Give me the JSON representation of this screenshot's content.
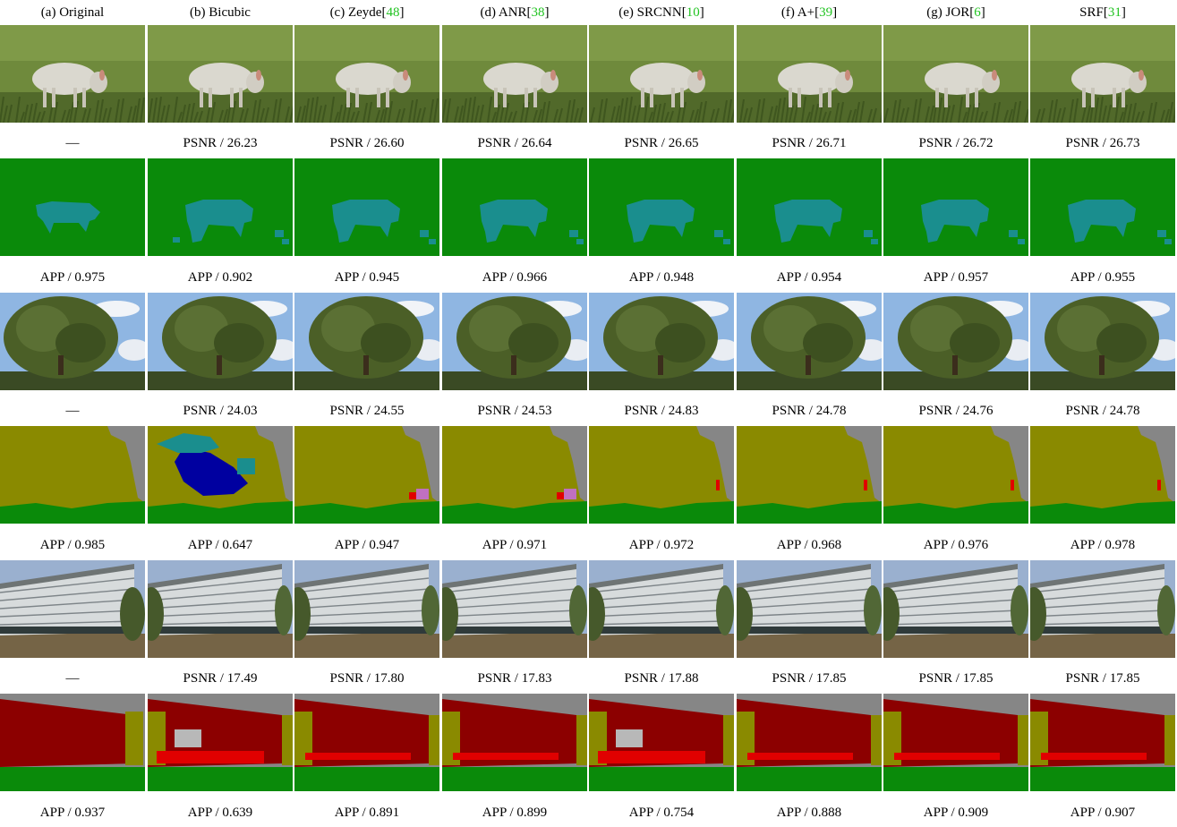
{
  "columns": [
    {
      "label": "(a) Original",
      "ref": ""
    },
    {
      "label": "(b) Bicubic",
      "ref": ""
    },
    {
      "label": "(c) Zeyde[",
      "ref": "48",
      "suffix": "]"
    },
    {
      "label": "(d) ANR[",
      "ref": "38",
      "suffix": "]"
    },
    {
      "label": "(e) SRCNN[",
      "ref": "10",
      "suffix": "]"
    },
    {
      "label": "(f) A+[",
      "ref": "39",
      "suffix": "]"
    },
    {
      "label": "(g) JOR[",
      "ref": "6",
      "suffix": "]"
    },
    {
      "label": "SRF[",
      "ref": "31",
      "suffix": "]"
    }
  ],
  "rows": [
    {
      "scene": "lamb",
      "psnr": [
        "—",
        "PSNR / 26.23",
        "PSNR / 26.60",
        "PSNR / 26.64",
        "PSNR / 26.65",
        "PSNR / 26.71",
        "PSNR / 26.72",
        "PSNR / 26.73"
      ],
      "app": [
        "APP / 0.975",
        "APP / 0.902",
        "APP / 0.945",
        "APP / 0.966",
        "APP / 0.948",
        "APP / 0.954",
        "APP / 0.957",
        "APP / 0.955"
      ]
    },
    {
      "scene": "tree",
      "psnr": [
        "—",
        "PSNR / 24.03",
        "PSNR / 24.55",
        "PSNR / 24.53",
        "PSNR / 24.83",
        "PSNR / 24.78",
        "PSNR / 24.76",
        "PSNR / 24.78"
      ],
      "app": [
        "APP / 0.985",
        "APP / 0.647",
        "APP / 0.947",
        "APP / 0.971",
        "APP / 0.972",
        "APP / 0.968",
        "APP / 0.976",
        "APP / 0.978"
      ]
    },
    {
      "scene": "building",
      "psnr": [
        "—",
        "PSNR / 17.49",
        "PSNR / 17.80",
        "PSNR / 17.83",
        "PSNR / 17.88",
        "PSNR / 17.85",
        "PSNR / 17.85",
        "PSNR / 17.85"
      ],
      "app": [
        "APP / 0.937",
        "APP / 0.639",
        "APP / 0.891",
        "APP / 0.899",
        "APP / 0.754",
        "APP / 0.888",
        "APP / 0.909",
        "APP / 0.907"
      ]
    }
  ],
  "colors": {
    "ref_green": "#22c322",
    "grass": "#0a8a0a",
    "sheep": "#1a8e8e",
    "tree": "#8a8a00",
    "sky": "#868686",
    "building": "#8c0000",
    "bright_red": "#e00000",
    "navy": "#0000a0",
    "pink": "#c070c0"
  }
}
